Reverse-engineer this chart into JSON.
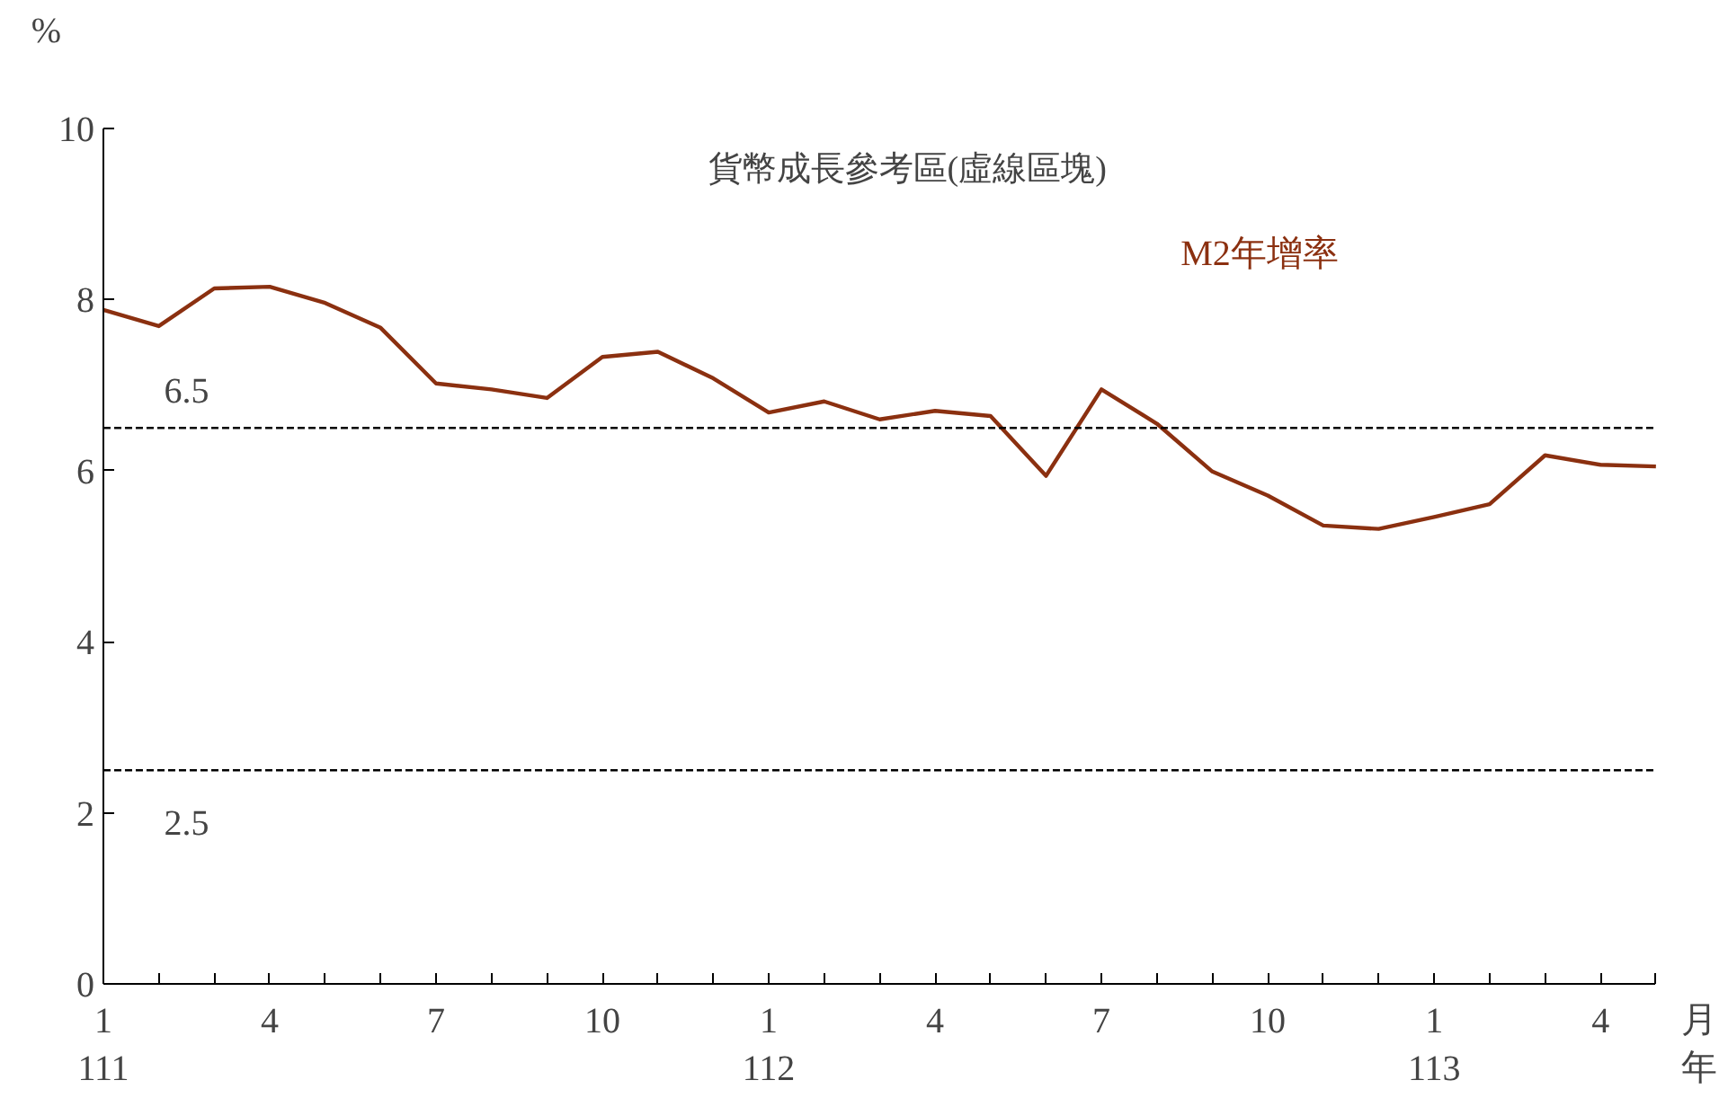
{
  "chart_data": {
    "type": "line",
    "ylabel": "%",
    "xlabel": "月年",
    "categories": [
      "1\n111",
      null,
      null,
      "4",
      null,
      null,
      "7",
      null,
      null,
      "10",
      null,
      null,
      "1\n112",
      null,
      null,
      "4",
      null,
      null,
      "7",
      null,
      null,
      "10",
      null,
      null,
      "1\n113",
      null,
      null,
      "4",
      null
    ],
    "series": [
      {
        "name": "M2年增率",
        "color": "#8b3010",
        "values": [
          7.88,
          7.69,
          8.13,
          8.15,
          7.96,
          7.67,
          7.02,
          6.95,
          6.85,
          7.33,
          7.39,
          7.08,
          6.68,
          6.81,
          6.6,
          6.7,
          6.64,
          5.94,
          6.95,
          6.55,
          5.99,
          5.71,
          5.36,
          5.32,
          5.46,
          5.61,
          6.18,
          6.07,
          6.05
        ]
      }
    ],
    "ylim": [
      0,
      10
    ],
    "yticks": [
      0,
      2,
      4,
      6,
      8,
      10
    ],
    "ref_lines": [
      {
        "axis": "y",
        "value": 6.5,
        "label": "6.5",
        "color": "#000000",
        "line_style": "dashed"
      },
      {
        "axis": "y",
        "value": 2.5,
        "label": "2.5",
        "color": "#000000",
        "line_style": "dashed"
      }
    ],
    "annotations": [
      "貨幣成長參考區(虛線區塊)"
    ],
    "grid": false,
    "legend": false,
    "marker": "none",
    "line_style": "solid"
  }
}
